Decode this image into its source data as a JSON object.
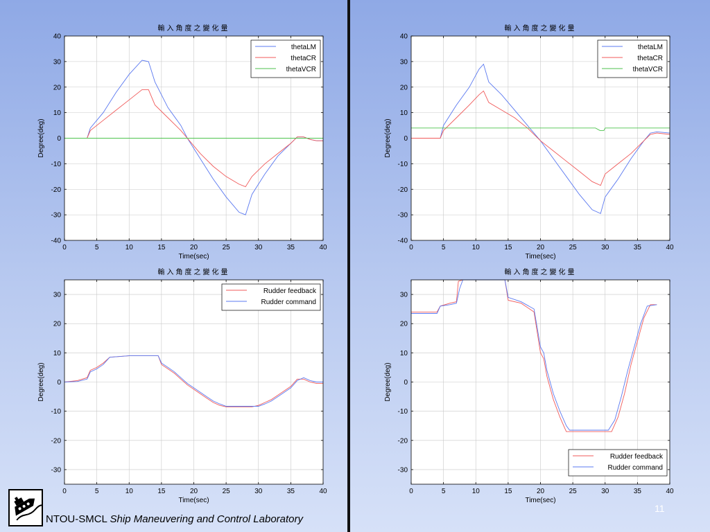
{
  "footer": {
    "org": "NTOU-SMCL",
    "lab_name": "Ship Maneuvering and Control Laboratory",
    "page_number": "11"
  },
  "colors": {
    "thetaLM": "#5a78f0",
    "thetaCR": "#f05a5a",
    "thetaVCR": "#4cc24c",
    "rudder_feedback": "#f05a5a",
    "rudder_command": "#5a78f0",
    "grid": "#c8c8c8"
  },
  "chart_data": [
    {
      "type": "line",
      "title": "輸入角度之變化量",
      "xlabel": "Time(sec)",
      "ylabel": "Degree(deg)",
      "xlim": [
        0,
        40
      ],
      "ylim": [
        -40,
        40
      ],
      "xticks": [
        0,
        5,
        10,
        15,
        20,
        25,
        30,
        35,
        40
      ],
      "yticks": [
        -40,
        -30,
        -20,
        -10,
        0,
        10,
        20,
        30,
        40
      ],
      "grid": true,
      "legend_position": "top-right",
      "series": [
        {
          "name": "thetaLM",
          "x": [
            0,
            3.5,
            4,
            6,
            8,
            10,
            12,
            13,
            14,
            16,
            18,
            19,
            21,
            23,
            25,
            27,
            28,
            29,
            31,
            33,
            35,
            36,
            37,
            38,
            39,
            40
          ],
          "y": [
            0,
            0,
            4,
            10,
            18,
            25,
            30.5,
            30,
            22,
            12,
            5,
            0,
            -8,
            -16,
            -23,
            -29,
            -30,
            -22,
            -14,
            -7,
            -2,
            0.5,
            0.5,
            -0.5,
            -1,
            -1
          ]
        },
        {
          "name": "thetaCR",
          "x": [
            0,
            3.5,
            4,
            6,
            8,
            10,
            12,
            13,
            14,
            16,
            18,
            19,
            21,
            23,
            25,
            27,
            28,
            29,
            31,
            33,
            35,
            36,
            37,
            38,
            39,
            40
          ],
          "y": [
            0,
            0,
            3,
            7,
            11,
            15,
            19,
            19,
            13,
            8,
            3,
            0,
            -6,
            -11,
            -15,
            -18,
            -19,
            -15,
            -10,
            -6,
            -2,
            0.5,
            0.5,
            -0.5,
            -1,
            -1
          ]
        },
        {
          "name": "thetaVCR",
          "x": [
            0,
            40
          ],
          "y": [
            0,
            0
          ]
        }
      ]
    },
    {
      "type": "line",
      "title": "輸入角度之變化量",
      "xlabel": "Time(sec)",
      "ylabel": "Degree(deg)",
      "xlim": [
        0,
        40
      ],
      "ylim": [
        -40,
        40
      ],
      "xticks": [
        0,
        5,
        10,
        15,
        20,
        25,
        30,
        35,
        40
      ],
      "yticks": [
        -40,
        -30,
        -20,
        -10,
        0,
        10,
        20,
        30,
        40
      ],
      "grid": true,
      "legend_position": "top-right",
      "series": [
        {
          "name": "thetaLM",
          "x": [
            0,
            4.5,
            5,
            7,
            9,
            10.5,
            11.2,
            12,
            14,
            16,
            18,
            20,
            22,
            24,
            26,
            28,
            29.3,
            30,
            32,
            34,
            36,
            37,
            38,
            40
          ],
          "y": [
            0,
            0,
            5,
            13,
            20,
            27,
            29,
            22,
            17,
            11,
            5,
            -1,
            -8,
            -15,
            -22,
            -28,
            -29.5,
            -23,
            -16,
            -8,
            -1,
            2,
            2.5,
            2
          ]
        },
        {
          "name": "thetaCR",
          "x": [
            0,
            4.5,
            5,
            7,
            9,
            10.5,
            11.2,
            12,
            14,
            16,
            18,
            20,
            22,
            24,
            26,
            28,
            29.3,
            30,
            32,
            34,
            36,
            37,
            38,
            40
          ],
          "y": [
            0,
            0,
            3,
            8,
            13,
            17,
            18.5,
            14,
            11,
            8,
            4,
            -1,
            -5,
            -9,
            -13,
            -17,
            -18.5,
            -14,
            -10,
            -6,
            -1,
            1.5,
            2,
            1.5
          ]
        },
        {
          "name": "thetaVCR",
          "x": [
            0,
            28.5,
            29.2,
            29.8,
            30,
            40
          ],
          "y": [
            4,
            4,
            3,
            3,
            4,
            4
          ]
        }
      ]
    },
    {
      "type": "line",
      "title": "輸入角度之變化量",
      "xlabel": "Time(sec)",
      "ylabel": "Degree(deg)",
      "xlim": [
        0,
        40
      ],
      "ylim": [
        -35,
        35
      ],
      "xticks": [
        0,
        5,
        10,
        15,
        20,
        25,
        30,
        35,
        40
      ],
      "yticks": [
        -30,
        -20,
        -10,
        0,
        10,
        20,
        30
      ],
      "grid": true,
      "legend_position": "top-right",
      "series": [
        {
          "name": "Rudder feedback",
          "x": [
            0,
            2,
            3.5,
            4,
            5,
            6,
            7,
            10,
            14.5,
            15,
            16,
            17,
            18,
            19,
            20,
            21,
            22,
            23,
            24,
            25,
            29,
            30,
            31,
            32,
            33,
            34,
            35,
            36,
            37,
            38,
            39,
            40
          ],
          "y": [
            0,
            0.5,
            1.5,
            4,
            5,
            6.5,
            8.5,
            9,
            9,
            6,
            4.5,
            3,
            1,
            -1,
            -2.5,
            -4,
            -5.5,
            -7,
            -8,
            -8.5,
            -8.5,
            -8,
            -7,
            -6,
            -4.5,
            -3,
            -1.5,
            1,
            1,
            0,
            -0.5,
            -0.5
          ]
        },
        {
          "name": "Rudder command",
          "x": [
            0,
            2,
            3.5,
            4,
            5,
            6,
            7,
            10,
            14.5,
            15,
            16,
            17,
            18,
            19,
            20,
            21,
            22,
            23,
            24,
            25,
            29,
            30,
            31,
            32,
            33,
            34,
            35,
            36,
            37,
            38,
            39,
            40
          ],
          "y": [
            0,
            0.2,
            1,
            3.5,
            4.5,
            6,
            8.5,
            9,
            9,
            6.5,
            5,
            3.5,
            1.5,
            -0.5,
            -2,
            -3.5,
            -5,
            -6.5,
            -7.5,
            -8.3,
            -8.3,
            -8.3,
            -7.5,
            -6.5,
            -5,
            -3.5,
            -2,
            0.5,
            1.5,
            0.5,
            0,
            0
          ]
        }
      ]
    },
    {
      "type": "line",
      "title": "輸入角度之變化量",
      "xlabel": "Time(sec)",
      "ylabel": "Degree(deg)",
      "xlim": [
        0,
        40
      ],
      "ylim": [
        -35,
        35
      ],
      "xticks": [
        0,
        5,
        10,
        15,
        20,
        25,
        30,
        35,
        40
      ],
      "yticks": [
        -30,
        -20,
        -10,
        0,
        10,
        20,
        30
      ],
      "grid": true,
      "legend_position": "bottom-right",
      "series": [
        {
          "name": "Rudder feedback",
          "x": [
            0,
            4,
            4.5,
            6,
            7,
            7.3,
            8,
            9,
            13.5,
            14.5,
            15,
            17,
            19,
            20,
            20.5,
            21,
            22,
            23,
            23.8,
            24,
            31,
            32,
            33,
            34,
            35,
            36,
            37,
            38
          ],
          "y": [
            24,
            24,
            26,
            27,
            27.5,
            34.5,
            35,
            35,
            35,
            35,
            28,
            27,
            24,
            10,
            8,
            2,
            -6,
            -12,
            -16,
            -17,
            -17,
            -12,
            -4,
            6,
            14,
            22,
            26.5,
            26.5
          ]
        },
        {
          "name": "Rudder command",
          "x": [
            0,
            4,
            4.5,
            6,
            7,
            7.5,
            8,
            9,
            13.5,
            14.5,
            15,
            17,
            19,
            20,
            20.5,
            21,
            22,
            23,
            24,
            24.5,
            30.5,
            31.5,
            32.5,
            33.5,
            34.5,
            35.5,
            36.5,
            38
          ],
          "y": [
            23.5,
            23.5,
            26,
            26.5,
            27,
            32,
            35,
            35,
            35,
            35,
            29,
            27.5,
            25,
            12,
            10,
            4,
            -4,
            -10,
            -15,
            -16.5,
            -16.5,
            -13,
            -5,
            4,
            12,
            20,
            26,
            26.5
          ]
        }
      ]
    }
  ]
}
